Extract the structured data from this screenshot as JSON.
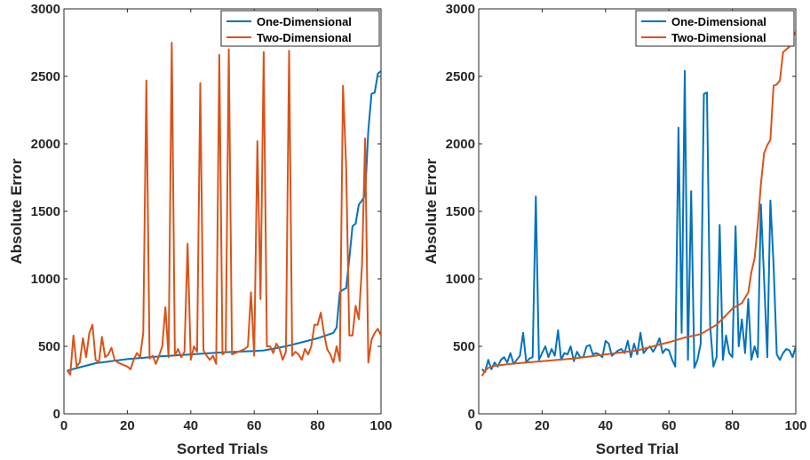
{
  "chart_data": [
    {
      "type": "line",
      "title": "",
      "xlabel": "Sorted Trials",
      "ylabel": "Absolute Error",
      "xlim": [
        0,
        100
      ],
      "ylim": [
        0,
        3000
      ],
      "xticks": [
        "0",
        "20",
        "40",
        "60",
        "80",
        "100"
      ],
      "yticks": [
        "0",
        "500",
        "1000",
        "1500",
        "2000",
        "2500",
        "3000"
      ],
      "grid": false,
      "legend_position": "top-right",
      "series": [
        {
          "name": "One-Dimensional",
          "color": "#0072BD",
          "x": [
            1,
            5,
            10,
            20,
            30,
            40,
            50,
            60,
            63,
            70,
            80,
            85,
            86,
            87,
            88,
            89,
            90,
            91,
            92,
            93,
            94,
            95,
            96,
            97,
            98,
            99,
            100
          ],
          "y": [
            320,
            345,
            375,
            405,
            425,
            440,
            455,
            465,
            470,
            500,
            560,
            600,
            640,
            900,
            920,
            930,
            1150,
            1390,
            1410,
            1550,
            1580,
            1620,
            2100,
            2370,
            2380,
            2520,
            2540
          ]
        },
        {
          "name": "Two-Dimensional",
          "color": "#D95319",
          "x": [
            1,
            2,
            3,
            4,
            5,
            6,
            7,
            8,
            9,
            10,
            11,
            12,
            13,
            14,
            15,
            16,
            17,
            18,
            19,
            20,
            21,
            22,
            23,
            24,
            25,
            26,
            27,
            28,
            29,
            30,
            31,
            32,
            33,
            34,
            35,
            36,
            37,
            38,
            39,
            40,
            41,
            42,
            43,
            44,
            45,
            46,
            47,
            48,
            49,
            50,
            51,
            52,
            53,
            54,
            55,
            56,
            57,
            58,
            59,
            60,
            61,
            62,
            63,
            64,
            65,
            66,
            67,
            68,
            69,
            70,
            71,
            72,
            73,
            74,
            75,
            76,
            77,
            78,
            79,
            80,
            81,
            82,
            83,
            84,
            85,
            86,
            87,
            88,
            89,
            90,
            91,
            92,
            93,
            94,
            95,
            96,
            97,
            98,
            99,
            100
          ],
          "y": [
            320,
            290,
            580,
            350,
            380,
            560,
            420,
            600,
            660,
            400,
            380,
            570,
            420,
            440,
            490,
            400,
            380,
            370,
            360,
            350,
            330,
            400,
            450,
            420,
            600,
            2470,
            410,
            430,
            370,
            430,
            500,
            790,
            420,
            2750,
            430,
            480,
            420,
            460,
            1260,
            400,
            500,
            460,
            2450,
            470,
            430,
            400,
            430,
            370,
            2660,
            440,
            460,
            2700,
            440,
            450,
            460,
            470,
            480,
            500,
            900,
            430,
            2020,
            850,
            2680,
            500,
            500,
            450,
            520,
            480,
            400,
            460,
            2690,
            430,
            460,
            440,
            400,
            480,
            440,
            500,
            660,
            660,
            750,
            600,
            480,
            440,
            380,
            500,
            390,
            2430,
            1840,
            580,
            580,
            800,
            700,
            1100,
            2040,
            380,
            550,
            600,
            630,
            580
          ]
        }
      ]
    },
    {
      "type": "line",
      "title": "",
      "xlabel": "Sorted Trial",
      "ylabel": "Absolute Error",
      "xlim": [
        0,
        100
      ],
      "ylim": [
        0,
        3000
      ],
      "xticks": [
        "0",
        "20",
        "40",
        "60",
        "80",
        "100"
      ],
      "yticks": [
        "0",
        "500",
        "1000",
        "1500",
        "2000",
        "2500",
        "3000"
      ],
      "grid": false,
      "legend_position": "top-right",
      "series": [
        {
          "name": "One-Dimensional",
          "color": "#0072BD",
          "x": [
            1,
            2,
            3,
            4,
            5,
            6,
            7,
            8,
            9,
            10,
            11,
            12,
            13,
            14,
            15,
            16,
            17,
            18,
            19,
            20,
            21,
            22,
            23,
            24,
            25,
            26,
            27,
            28,
            29,
            30,
            31,
            32,
            33,
            34,
            35,
            36,
            37,
            38,
            39,
            40,
            41,
            42,
            43,
            44,
            45,
            46,
            47,
            48,
            49,
            50,
            51,
            52,
            53,
            54,
            55,
            56,
            57,
            58,
            59,
            60,
            61,
            62,
            63,
            64,
            65,
            66,
            67,
            68,
            69,
            70,
            71,
            72,
            73,
            74,
            75,
            76,
            77,
            78,
            79,
            80,
            81,
            82,
            83,
            84,
            85,
            86,
            87,
            88,
            89,
            90,
            91,
            92,
            93,
            94,
            95,
            96,
            97,
            98,
            99,
            100
          ],
          "y": [
            330,
            310,
            400,
            330,
            380,
            350,
            400,
            420,
            380,
            450,
            370,
            400,
            430,
            600,
            380,
            410,
            420,
            1610,
            400,
            450,
            500,
            420,
            480,
            430,
            620,
            400,
            450,
            440,
            500,
            390,
            460,
            420,
            420,
            500,
            510,
            440,
            450,
            440,
            420,
            540,
            520,
            430,
            450,
            470,
            480,
            450,
            540,
            420,
            520,
            440,
            600,
            450,
            480,
            500,
            460,
            500,
            560,
            450,
            480,
            470,
            400,
            350,
            2120,
            600,
            2540,
            400,
            1650,
            340,
            400,
            520,
            2370,
            2380,
            650,
            350,
            420,
            1400,
            400,
            580,
            450,
            420,
            1390,
            500,
            700,
            450,
            850,
            400,
            500,
            420,
            1550,
            1000,
            420,
            1580,
            1100,
            440,
            400,
            450,
            480,
            470,
            420,
            500
          ]
        },
        {
          "name": "Two-Dimensional",
          "color": "#D95319",
          "x": [
            1,
            2,
            3,
            5,
            10,
            20,
            30,
            40,
            50,
            60,
            65,
            70,
            75,
            78,
            80,
            83,
            85,
            86,
            87,
            88,
            89,
            90,
            91,
            92,
            93,
            94,
            95,
            96,
            97,
            98,
            99,
            100
          ],
          "y": [
            280,
            320,
            340,
            355,
            370,
            390,
            410,
            440,
            470,
            530,
            565,
            590,
            660,
            730,
            780,
            820,
            900,
            1050,
            1150,
            1400,
            1700,
            1930,
            1990,
            2030,
            2430,
            2440,
            2470,
            2680,
            2700,
            2720,
            2790,
            2830
          ]
        }
      ]
    }
  ]
}
